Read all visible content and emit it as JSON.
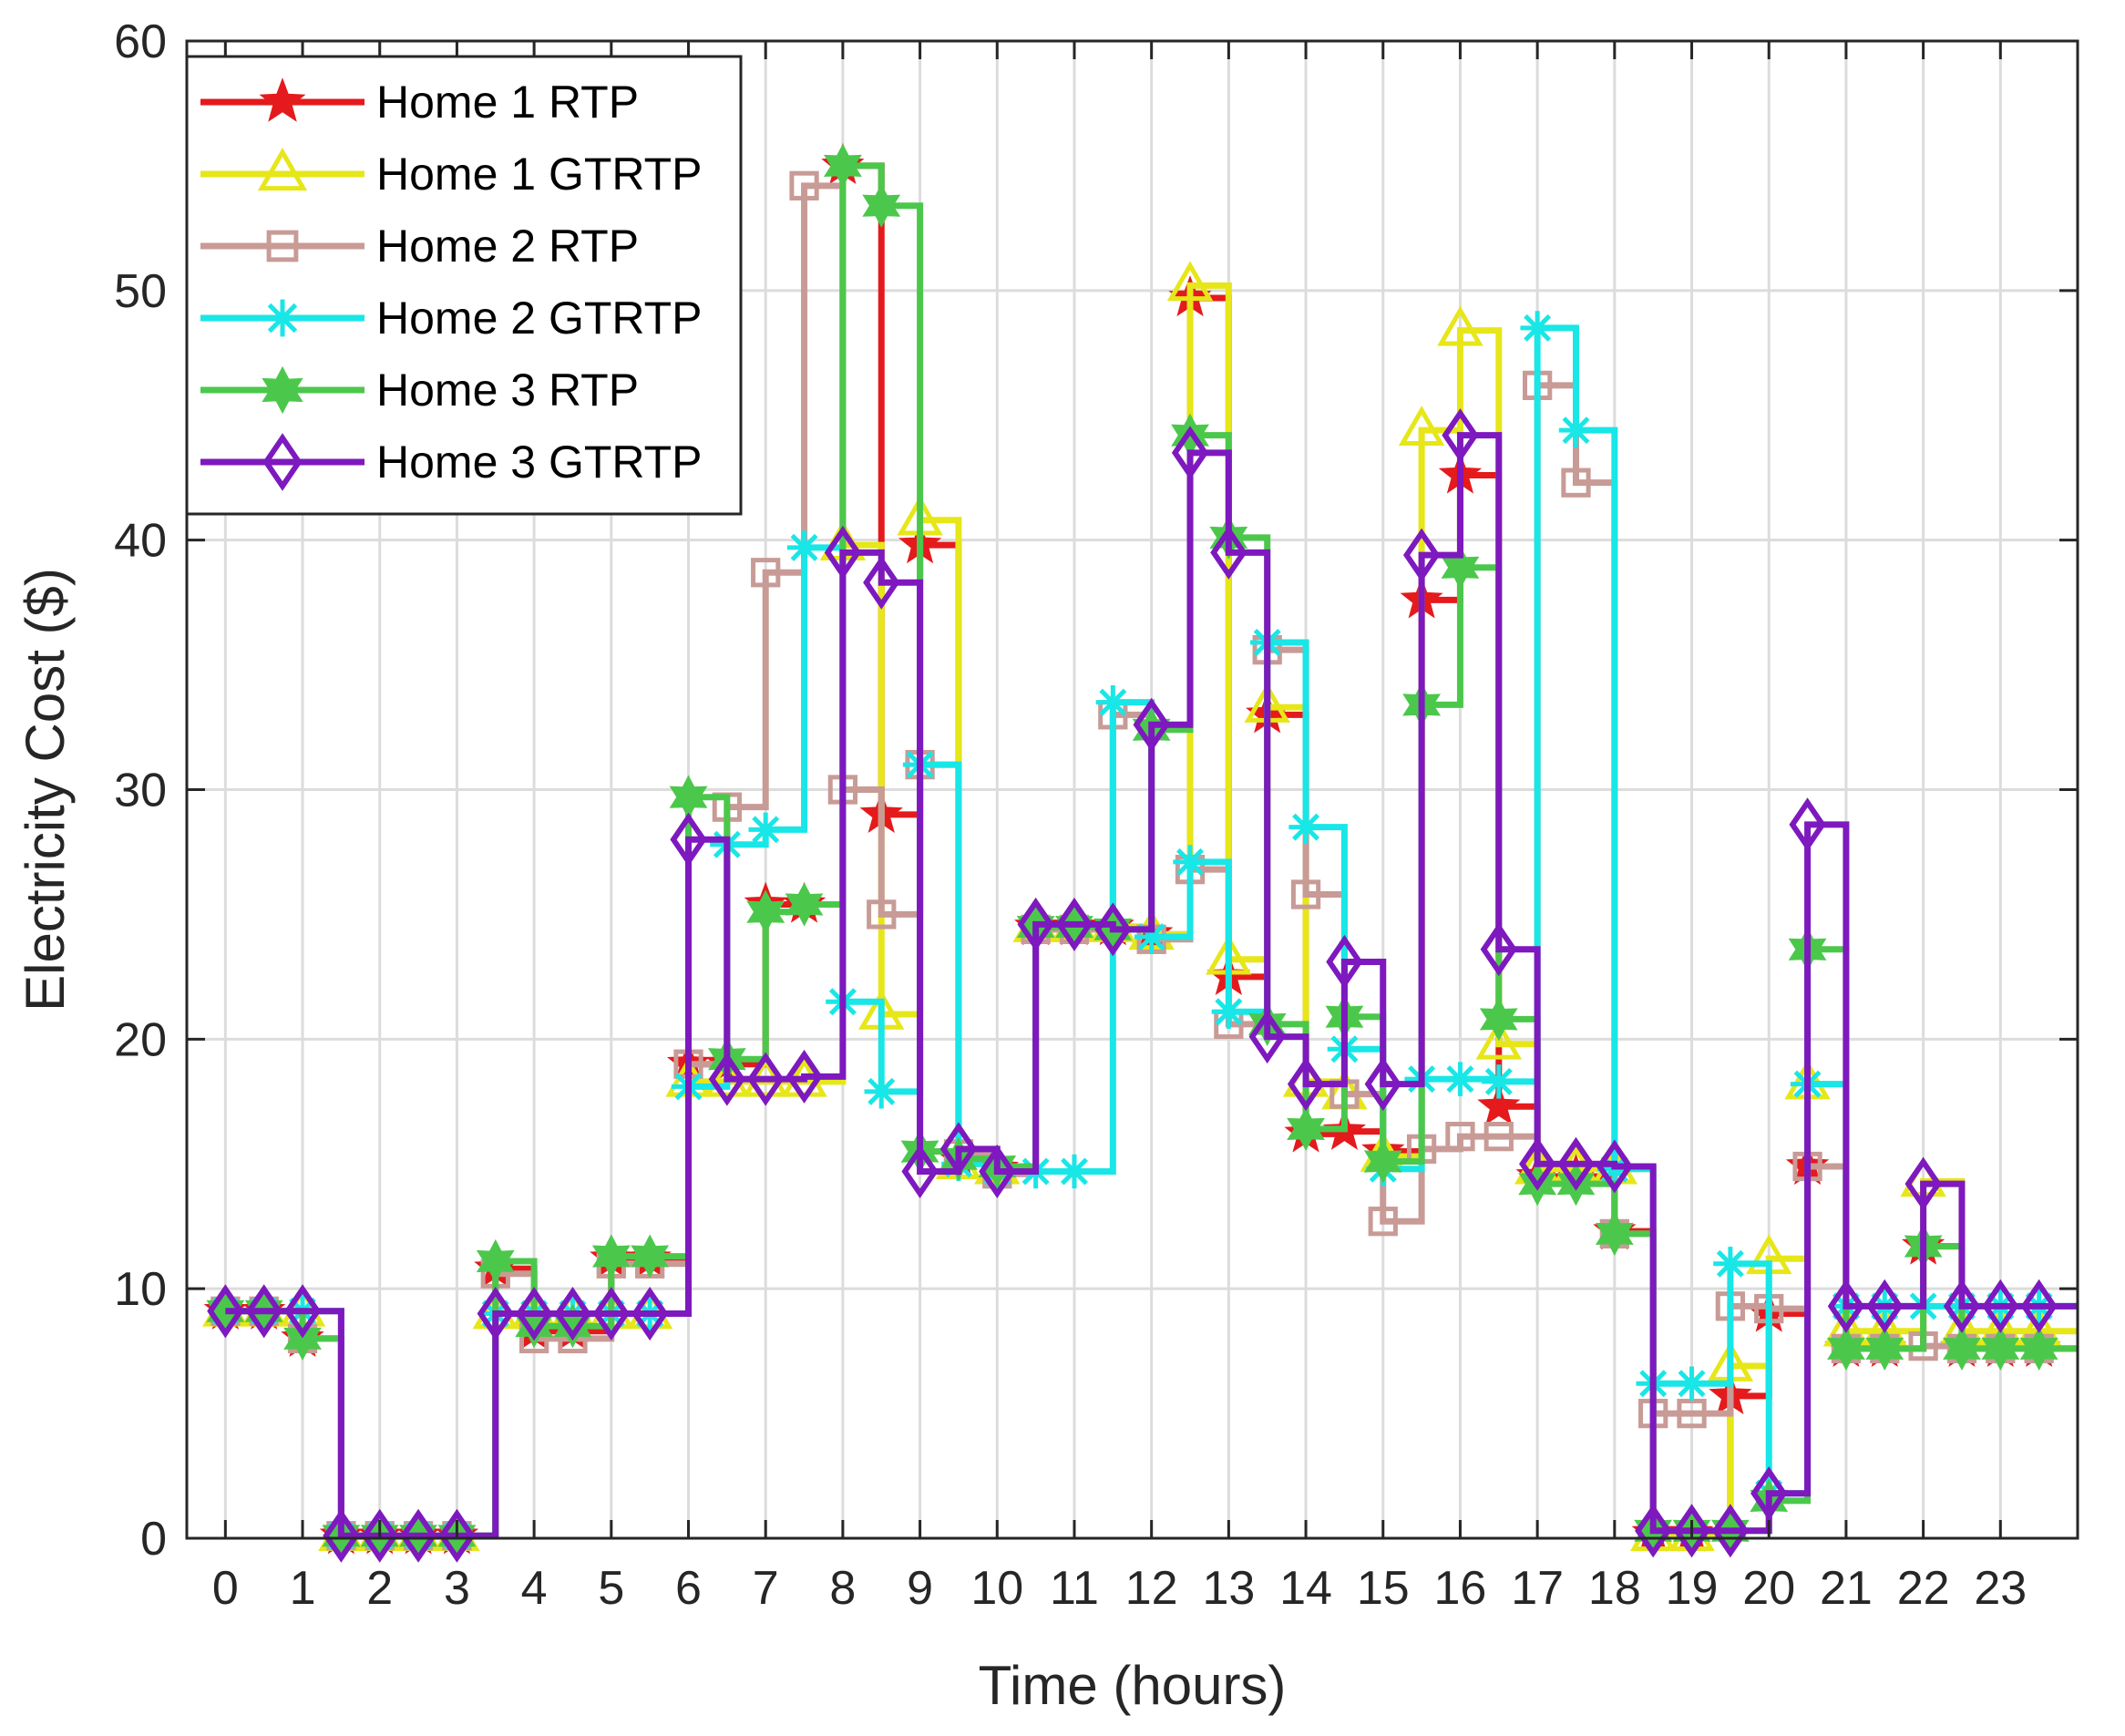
{
  "chart_data": {
    "type": "line",
    "style": "stairs",
    "xlabel": "Time (hours)",
    "ylabel": "Electricity Cost ($)",
    "xlim": [
      -0.5,
      24
    ],
    "ylim": [
      0,
      60
    ],
    "xticks": [
      0,
      1,
      2,
      3,
      4,
      5,
      6,
      7,
      8,
      9,
      10,
      11,
      12,
      13,
      14,
      15,
      16,
      17,
      18,
      19,
      20,
      21,
      22,
      23
    ],
    "yticks": [
      0,
      10,
      20,
      30,
      40,
      50,
      60
    ],
    "grid": true,
    "legend_position": "top-left",
    "x": [
      0,
      0.5,
      1,
      1.5,
      2,
      2.5,
      3,
      3.5,
      4,
      4.5,
      5,
      5.5,
      6,
      6.5,
      7,
      7.5,
      8,
      8.5,
      9,
      9.5,
      10,
      10.5,
      11,
      11.5,
      12,
      12.5,
      13,
      13.5,
      14,
      14.5,
      15,
      15.5,
      16,
      16.5,
      17,
      17.5,
      18,
      18.5,
      19,
      19.5,
      20,
      20.5,
      21,
      21.5,
      22,
      22.5,
      23,
      23.5
    ],
    "series": [
      {
        "name": "Home 1 RTP",
        "color": "#e41a1c",
        "marker": "star",
        "values": [
          9.1,
          9.1,
          8,
          0.1,
          0.1,
          0.1,
          0.1,
          10.8,
          8.3,
          8.3,
          11.2,
          11.2,
          19,
          19,
          25.4,
          25.4,
          55,
          29,
          39.8,
          15.2,
          14.8,
          24.5,
          24.5,
          24.5,
          24.2,
          49.7,
          22.5,
          33,
          16.2,
          16.3,
          15.5,
          37.6,
          42.6,
          17.3,
          14.5,
          14.5,
          12.3,
          0.2,
          0.2,
          5.7,
          9,
          14.9,
          7.6,
          7.6,
          11.7,
          7.6,
          7.6,
          7.6
        ]
      },
      {
        "name": "Home 1 GTRTP",
        "color": "#e6e619",
        "marker": "triangle",
        "values": [
          9.1,
          9.1,
          9.1,
          0.1,
          0.1,
          0.1,
          0.1,
          9,
          9,
          9,
          9,
          9,
          18.3,
          18.3,
          18.3,
          18.3,
          39.8,
          21,
          40.8,
          15,
          14.8,
          24.5,
          24.5,
          24.5,
          24.2,
          50.2,
          23.2,
          33.3,
          18.3,
          17.8,
          15.3,
          44.4,
          48.4,
          19.8,
          14.8,
          14.8,
          14.8,
          0.1,
          0.1,
          6.9,
          11.2,
          18.2,
          8.3,
          8.3,
          14.3,
          8.3,
          8.3,
          8.3
        ]
      },
      {
        "name": "Home 2 RTP",
        "color": "#c89b96",
        "marker": "square",
        "values": [
          9.1,
          9.1,
          8,
          0.1,
          0.1,
          0.1,
          0.1,
          10.6,
          8,
          8,
          11,
          11,
          19,
          29.3,
          38.7,
          54.2,
          30,
          25,
          31,
          15.4,
          14.6,
          24.4,
          24.4,
          33,
          24,
          26.8,
          20.6,
          35.6,
          25.8,
          17.8,
          12.7,
          15.6,
          16.1,
          16.1,
          46.2,
          42.3,
          12.2,
          5,
          5,
          9.3,
          9.2,
          14.9,
          7.6,
          7.6,
          7.7,
          7.6,
          7.6,
          7.6
        ]
      },
      {
        "name": "Home 2 GTRTP",
        "color": "#19e6e6",
        "marker": "asterisk",
        "values": [
          9.1,
          9.1,
          9.1,
          0.1,
          0.1,
          0.1,
          0.1,
          9,
          9,
          9,
          9,
          9,
          18.1,
          27.8,
          28.4,
          39.7,
          21.5,
          17.9,
          31,
          15,
          14.7,
          14.7,
          14.7,
          33.5,
          24.1,
          27.1,
          21.1,
          35.9,
          28.5,
          19.6,
          14.8,
          18.4,
          18.4,
          18.3,
          48.5,
          44.4,
          14.8,
          6.2,
          6.2,
          11,
          1.8,
          18.2,
          9.3,
          9.3,
          9.3,
          9.3,
          9.3,
          9.3
        ]
      },
      {
        "name": "Home 3 RTP",
        "color": "#4bc84b",
        "marker": "hexagram",
        "values": [
          9.1,
          9.1,
          8,
          0.1,
          0.1,
          0.1,
          0.1,
          11.1,
          8.5,
          8.5,
          11.3,
          11.3,
          29.7,
          19.2,
          25.1,
          25.4,
          55,
          53.4,
          15.5,
          15.2,
          14.9,
          24.5,
          24.5,
          24.4,
          32.4,
          44.2,
          40.1,
          20.6,
          16.4,
          20.9,
          15.1,
          33.4,
          38.9,
          20.8,
          14.2,
          14.2,
          12.2,
          0.3,
          0.3,
          0.3,
          1.5,
          23.6,
          7.6,
          7.6,
          11.7,
          7.6,
          7.6,
          7.6
        ]
      },
      {
        "name": "Home 3 GTRTP",
        "color": "#7d19be",
        "marker": "diamond",
        "values": [
          9.1,
          9.1,
          9.1,
          0.1,
          0.1,
          0.1,
          0.1,
          9,
          9,
          9,
          9,
          9,
          28,
          18.4,
          18.4,
          18.5,
          39.5,
          38.3,
          14.7,
          15.6,
          14.7,
          24.6,
          24.6,
          24.4,
          32.6,
          43.5,
          39.5,
          20.1,
          18.2,
          23.1,
          18.2,
          39.4,
          44.2,
          23.6,
          15,
          15,
          14.9,
          0.3,
          0.3,
          0.3,
          1.8,
          28.6,
          9.3,
          9.3,
          14.2,
          9.3,
          9.3,
          9.3
        ]
      }
    ]
  }
}
